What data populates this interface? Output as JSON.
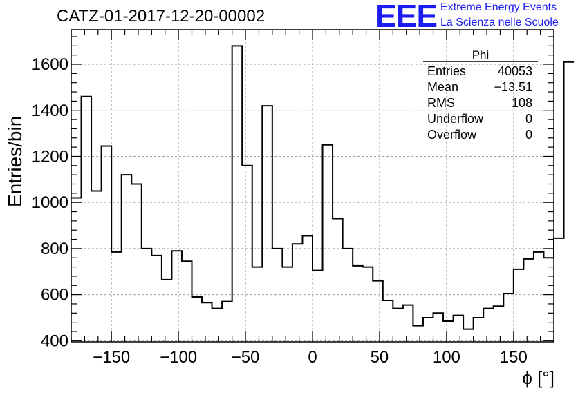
{
  "header": {
    "title": "CATZ-01-2017-12-20-00002",
    "logo_text": "EEE",
    "logo_line1": "Extreme Energy Events",
    "logo_line2": "La Scienza nelle Scuole",
    "logo_color": "#1c1cf0"
  },
  "stats": {
    "name": "Phi",
    "rows": [
      {
        "label": "Entries",
        "value": "40053"
      },
      {
        "label": "Mean",
        "value": "−13.51"
      },
      {
        "label": "RMS",
        "value": "108"
      },
      {
        "label": "Underflow",
        "value": "0"
      },
      {
        "label": "Overflow",
        "value": "0"
      }
    ]
  },
  "chart_data": {
    "type": "bar",
    "style": "histogram-step",
    "xlabel": "ϕ [°]",
    "ylabel": "Entries/bin",
    "xlim": [
      -180,
      180
    ],
    "ylim": [
      395,
      1750
    ],
    "grid": true,
    "x_ticks": [
      -150,
      -100,
      -50,
      0,
      50,
      100,
      150
    ],
    "y_ticks": [
      400,
      600,
      800,
      1000,
      1200,
      1400,
      1600
    ],
    "bin_edges_start": -180,
    "bin_width": 7.5,
    "values": [
      1020,
      1460,
      1050,
      1245,
      785,
      1120,
      1080,
      800,
      770,
      665,
      790,
      745,
      590,
      565,
      540,
      570,
      1680,
      1160,
      720,
      1420,
      800,
      720,
      820,
      855,
      705,
      1250,
      930,
      800,
      725,
      720,
      660,
      575,
      540,
      555,
      465,
      500,
      520,
      485,
      510,
      450,
      500,
      540,
      550,
      605,
      710,
      755,
      785,
      760,
      845,
      1610
    ],
    "line_color": "#000000",
    "grid_color": "#a0a0a0"
  }
}
